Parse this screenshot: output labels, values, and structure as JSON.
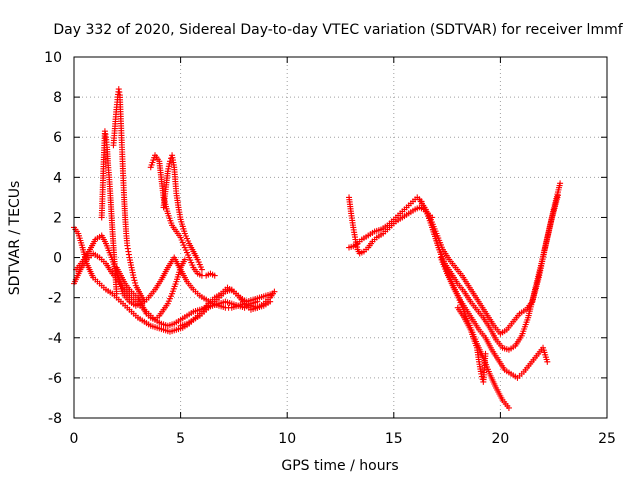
{
  "chart_data": {
    "type": "scatter",
    "title": "Day 332 of 2020, Sidereal Day-to-day VTEC variation (SDTVAR) for receiver lmmf",
    "xlabel": "GPS time / hours",
    "ylabel": "SDTVAR / TECUs",
    "xlim": [
      0,
      25
    ],
    "ylim": [
      -8,
      10
    ],
    "xticks": [
      0,
      5,
      10,
      15,
      20,
      25
    ],
    "yticks": [
      -8,
      -6,
      -4,
      -2,
      0,
      2,
      4,
      6,
      8,
      10
    ],
    "xtick_labels": [
      "0",
      "5",
      "10",
      "15",
      "20",
      "25"
    ],
    "ytick_labels": [
      "-8",
      "-6",
      "-4",
      "-2",
      "0",
      "2",
      "4",
      "6",
      "8",
      "10"
    ],
    "grid": true,
    "marker": "+",
    "color": "#ff0000",
    "series": [
      {
        "name": "trace-1",
        "x": [
          0.0,
          0.2,
          0.4,
          0.6,
          0.9,
          1.2,
          1.5,
          1.8,
          2.1,
          2.4,
          2.7,
          3.0,
          3.3,
          3.6,
          3.9,
          4.2,
          4.5,
          4.8,
          5.1,
          5.4,
          5.7,
          6.0,
          6.3,
          6.6,
          6.9,
          7.2,
          7.5,
          7.8,
          8.1,
          8.4,
          8.7,
          9.0,
          9.3
        ],
        "y": [
          1.5,
          1.2,
          0.5,
          -0.3,
          -1.0,
          -1.3,
          -1.6,
          -1.8,
          -2.1,
          -2.4,
          -2.7,
          -3.0,
          -3.2,
          -3.4,
          -3.5,
          -3.6,
          -3.7,
          -3.6,
          -3.5,
          -3.3,
          -3.0,
          -2.7,
          -2.3,
          -2.0,
          -1.8,
          -1.5,
          -1.7,
          -2.0,
          -2.2,
          -2.1,
          -2.0,
          -1.9,
          -1.8
        ]
      },
      {
        "name": "trace-2",
        "x": [
          0.0,
          0.3,
          0.6,
          0.9,
          1.2,
          1.5,
          1.8,
          2.1,
          2.3,
          2.6,
          2.9,
          3.2,
          3.5,
          3.8,
          4.1,
          4.4,
          4.7,
          5.0,
          5.3,
          5.6,
          5.9,
          6.2,
          6.5,
          6.8,
          7.1,
          7.4,
          7.7,
          8.0,
          8.3,
          8.6,
          8.9,
          9.2
        ],
        "y": [
          -1.3,
          -0.6,
          -0.1,
          0.2,
          0.0,
          -0.3,
          -0.8,
          -1.2,
          -1.8,
          -2.2,
          -2.4,
          -2.3,
          -2.0,
          -1.6,
          -1.1,
          -0.5,
          0.0,
          -0.6,
          -1.2,
          -1.6,
          -1.9,
          -2.1,
          -2.3,
          -2.4,
          -2.5,
          -2.5,
          -2.4,
          -2.3,
          -2.4,
          -2.5,
          -2.4,
          -2.2
        ]
      },
      {
        "name": "trace-3",
        "x": [
          0.1,
          0.4,
          0.7,
          1.0,
          1.3,
          1.5,
          1.8,
          2.0,
          2.3,
          2.6,
          2.9,
          3.2,
          3.5,
          3.8,
          4.1,
          4.4,
          4.7,
          5.0,
          5.3,
          5.6,
          5.9,
          6.2,
          6.5,
          6.8,
          7.1,
          7.4,
          7.7,
          8.0,
          8.3,
          8.6
        ],
        "y": [
          -0.6,
          -0.2,
          0.3,
          0.9,
          1.1,
          0.7,
          -0.1,
          -0.8,
          -1.5,
          -1.9,
          -2.2,
          -2.5,
          -2.8,
          -3.1,
          -3.3,
          -3.4,
          -3.3,
          -3.1,
          -2.9,
          -2.7,
          -2.6,
          -2.5,
          -2.4,
          -2.3,
          -2.2,
          -2.3,
          -2.4,
          -2.5,
          -2.3,
          -2.2
        ]
      },
      {
        "name": "trace-4",
        "x": [
          1.3,
          1.35,
          1.4,
          1.45,
          1.5,
          1.55,
          1.6,
          1.65,
          1.7,
          1.75,
          1.8,
          1.85,
          1.9,
          1.95,
          2.0
        ],
        "y": [
          2.0,
          3.5,
          5.0,
          6.3,
          6.0,
          5.5,
          4.6,
          4.0,
          3.2,
          2.3,
          1.4,
          0.6,
          -0.2,
          -1.0,
          -1.8
        ]
      },
      {
        "name": "trace-5",
        "x": [
          1.85,
          1.9,
          1.95,
          2.0,
          2.05,
          2.1,
          2.15,
          2.2,
          2.25,
          2.3,
          2.35,
          2.4,
          2.45,
          2.5,
          2.55,
          2.6,
          2.7,
          2.8,
          2.9,
          3.0,
          3.1,
          3.2,
          3.3
        ],
        "y": [
          5.6,
          6.2,
          6.9,
          7.5,
          8.0,
          8.4,
          8.1,
          6.8,
          5.5,
          4.2,
          3.0,
          2.0,
          1.2,
          0.6,
          0.3,
          0.0,
          -0.5,
          -1.0,
          -1.4,
          -1.6,
          -1.8,
          -2.0,
          -2.2
        ]
      },
      {
        "name": "trace-6",
        "x": [
          3.6,
          3.8,
          4.0,
          4.2,
          4.4,
          4.6,
          4.8,
          5.0,
          5.2,
          5.4,
          5.6,
          5.8,
          6.0,
          6.2,
          6.4,
          6.6
        ],
        "y": [
          4.5,
          5.1,
          4.8,
          3.0,
          2.2,
          1.6,
          1.3,
          1.0,
          0.5,
          0.0,
          -0.5,
          -0.8,
          -0.9,
          -0.9,
          -0.8,
          -0.9
        ]
      },
      {
        "name": "trace-7",
        "x": [
          4.2,
          4.4,
          4.5,
          4.6,
          4.7,
          4.8,
          4.9,
          5.0,
          5.2,
          5.4,
          5.6,
          5.8,
          6.0
        ],
        "y": [
          2.5,
          4.3,
          4.8,
          5.1,
          4.5,
          3.2,
          2.5,
          1.9,
          1.2,
          0.7,
          0.3,
          -0.1,
          -0.6
        ]
      },
      {
        "name": "trace-8",
        "x": [
          2.0,
          2.2,
          2.4,
          2.6,
          2.8,
          3.0,
          3.2,
          3.4,
          3.6,
          3.8,
          4.0,
          4.2,
          4.4,
          4.6,
          4.8,
          5.0,
          5.2
        ],
        "y": [
          -0.5,
          -0.9,
          -1.3,
          -1.6,
          -1.8,
          -2.0,
          -2.4,
          -2.8,
          -3.0,
          -3.1,
          -2.9,
          -2.6,
          -2.3,
          -1.8,
          -1.2,
          -0.5,
          -0.1
        ]
      },
      {
        "name": "trace-9",
        "x": [
          5.0,
          5.3,
          5.6,
          5.9,
          6.2,
          6.5,
          6.8,
          7.1,
          7.4,
          7.7,
          8.0,
          8.3,
          8.6,
          8.9,
          9.2,
          9.4
        ],
        "y": [
          -3.4,
          -3.3,
          -3.1,
          -2.9,
          -2.6,
          -2.3,
          -2.0,
          -1.7,
          -1.6,
          -1.9,
          -2.3,
          -2.6,
          -2.5,
          -2.3,
          -2.0,
          -1.7
        ]
      },
      {
        "name": "trace-10",
        "x": [
          12.9,
          13.0,
          13.1,
          13.2,
          13.3,
          13.4,
          13.6,
          13.8,
          14.0,
          14.2,
          14.5,
          14.8,
          15.1,
          15.4,
          15.7,
          16.0,
          16.2,
          16.4,
          16.6,
          16.8
        ],
        "y": [
          3.0,
          2.2,
          1.5,
          0.9,
          0.4,
          0.2,
          0.3,
          0.5,
          0.8,
          1.0,
          1.2,
          1.5,
          1.8,
          2.0,
          2.2,
          2.4,
          2.5,
          2.4,
          2.2,
          2.0
        ]
      },
      {
        "name": "trace-11",
        "x": [
          12.9,
          13.2,
          13.5,
          13.8,
          14.1,
          14.4,
          14.7,
          15.0,
          15.3,
          15.6,
          15.9,
          16.1,
          16.3
        ],
        "y": [
          0.5,
          0.6,
          0.9,
          1.1,
          1.3,
          1.4,
          1.6,
          1.9,
          2.2,
          2.5,
          2.8,
          3.0,
          2.8
        ]
      },
      {
        "name": "trace-12",
        "x": [
          16.2,
          16.5,
          16.8,
          17.1,
          17.4,
          17.7,
          18.0,
          18.3,
          18.6,
          18.9,
          19.2,
          19.5,
          19.8,
          20.1,
          20.4,
          20.7,
          21.0,
          21.3,
          21.6,
          21.9,
          22.2,
          22.5,
          22.8
        ],
        "y": [
          2.9,
          2.4,
          1.5,
          0.5,
          -0.3,
          -0.8,
          -1.3,
          -1.7,
          -2.2,
          -2.6,
          -3.0,
          -3.5,
          -4.1,
          -4.5,
          -4.6,
          -4.4,
          -3.9,
          -3.0,
          -1.7,
          -0.4,
          1.0,
          2.4,
          3.7
        ]
      },
      {
        "name": "trace-13",
        "x": [
          16.4,
          16.7,
          17.0,
          17.3,
          17.6,
          17.9,
          18.2,
          18.5,
          18.8,
          19.1,
          19.4,
          19.7,
          20.0,
          20.3,
          20.6,
          20.9,
          21.2,
          21.5,
          21.8,
          22.1,
          22.4,
          22.7
        ],
        "y": [
          2.5,
          2.0,
          1.2,
          0.4,
          -0.1,
          -0.5,
          -0.9,
          -1.4,
          -1.9,
          -2.4,
          -2.9,
          -3.4,
          -3.8,
          -3.6,
          -3.2,
          -2.8,
          -2.6,
          -2.2,
          -1.0,
          0.5,
          1.9,
          3.1
        ]
      },
      {
        "name": "trace-14",
        "x": [
          17.2,
          17.5,
          17.8,
          18.1,
          18.4,
          18.7,
          19.0,
          19.3,
          19.6,
          19.9,
          20.2,
          20.5,
          20.8,
          21.1,
          21.4,
          21.7,
          22.0,
          22.2
        ],
        "y": [
          0.0,
          -0.8,
          -1.5,
          -2.1,
          -2.6,
          -3.1,
          -3.6,
          -4.0,
          -4.6,
          -5.1,
          -5.6,
          -5.8,
          -6.0,
          -5.7,
          -5.3,
          -4.9,
          -4.5,
          -5.2
        ]
      },
      {
        "name": "trace-15",
        "x": [
          16.8,
          17.1,
          17.4,
          17.7,
          18.0,
          18.3,
          18.6,
          18.9,
          19.2,
          19.5,
          19.8,
          20.1,
          20.4
        ],
        "y": [
          1.5,
          0.5,
          -0.4,
          -1.2,
          -1.9,
          -2.7,
          -3.5,
          -4.3,
          -5.0,
          -5.8,
          -6.5,
          -7.1,
          -7.5
        ]
      },
      {
        "name": "trace-16",
        "x": [
          18.0,
          18.3,
          18.6,
          18.9,
          19.0,
          19.1,
          19.2,
          19.3
        ],
        "y": [
          -2.5,
          -3.0,
          -3.6,
          -4.5,
          -5.2,
          -5.8,
          -6.2,
          -4.8
        ]
      }
    ]
  }
}
